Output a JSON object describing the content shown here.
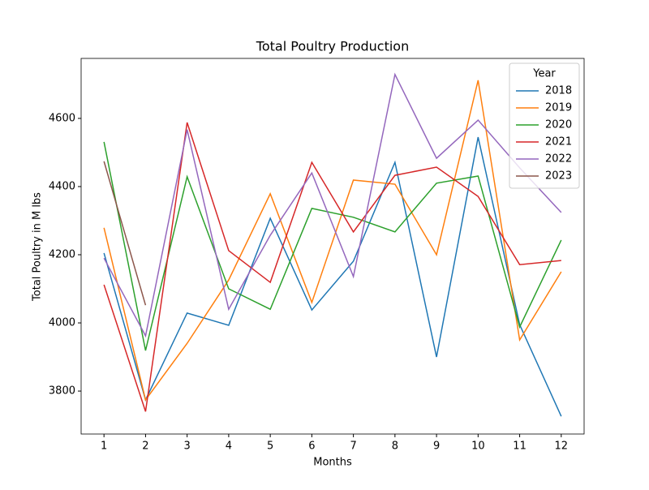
{
  "chart_data": {
    "type": "line",
    "title": "Total Poultry Production",
    "x_label": "Months",
    "y_label": "Total Poultry in M lbs",
    "x": [
      1,
      2,
      3,
      4,
      5,
      6,
      7,
      8,
      9,
      10,
      11,
      12
    ],
    "xlim": [
      0.45,
      12.55
    ],
    "xticks": [
      1,
      2,
      3,
      4,
      5,
      6,
      7,
      8,
      9,
      10,
      11,
      12
    ],
    "ylim": [
      3674,
      4776
    ],
    "yticks": [
      3800,
      4000,
      4200,
      4400,
      4600
    ],
    "legend_title": "Year",
    "legend": "upper right",
    "series": [
      {
        "name": "2018",
        "color": "#1f77b4",
        "values": [
          4205,
          3774,
          4029,
          3993,
          4307,
          4038,
          4181,
          4471,
          3900,
          4545,
          3995,
          3726
        ]
      },
      {
        "name": "2019",
        "color": "#ff7f0e",
        "values": [
          4279,
          3774,
          3940,
          4126,
          4379,
          4060,
          4419,
          4407,
          4200,
          4712,
          3950,
          4150
        ]
      },
      {
        "name": "2020",
        "color": "#2ca02c",
        "values": [
          4531,
          3919,
          4429,
          4100,
          4040,
          4336,
          4310,
          4267,
          4410,
          4431,
          3988,
          4243
        ]
      },
      {
        "name": "2021",
        "color": "#d62728",
        "values": [
          4112,
          3740,
          4588,
          4212,
          4119,
          4471,
          4267,
          4433,
          4457,
          4371,
          4171,
          4183
        ]
      },
      {
        "name": "2022",
        "color": "#9467bd",
        "values": [
          4190,
          3962,
          4567,
          4040,
          4257,
          4440,
          4136,
          4729,
          4483,
          4595,
          4455,
          4324
        ]
      },
      {
        "name": "2023",
        "color": "#8c564b",
        "values": [
          4474,
          4052,
          null,
          null,
          null,
          null,
          null,
          null,
          null,
          null,
          null,
          null
        ]
      }
    ]
  }
}
